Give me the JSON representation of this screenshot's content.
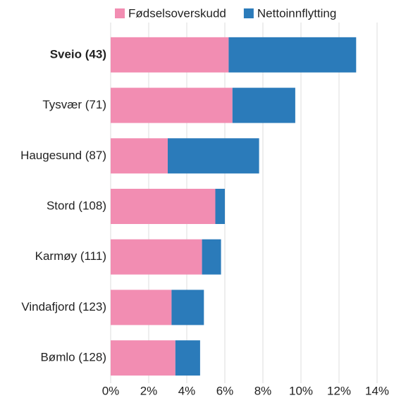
{
  "chart_data": {
    "type": "stacked_barh",
    "categories": [
      "Sveio (43)",
      "Tysvær (71)",
      "Haugesund (87)",
      "Stord (108)",
      "Karmøy (111)",
      "Vindafjord (123)",
      "Bømlo (128)"
    ],
    "highlight_index": 0,
    "series": [
      {
        "name": "Fødselsoverskudd",
        "color": "#f28db2",
        "values": [
          6.2,
          6.4,
          3.0,
          5.5,
          4.8,
          3.2,
          3.4
        ]
      },
      {
        "name": "Nettoinnflytting",
        "color": "#2b7bba",
        "values": [
          6.7,
          3.3,
          4.8,
          0.5,
          1.0,
          1.7,
          1.3
        ]
      }
    ],
    "xlim": [
      0,
      14
    ],
    "xticks": [
      {
        "value": 0,
        "label": "0%"
      },
      {
        "value": 2,
        "label": "2%"
      },
      {
        "value": 4,
        "label": "4%"
      },
      {
        "value": 6,
        "label": "6%"
      },
      {
        "value": 8,
        "label": "8%"
      },
      {
        "value": 10,
        "label": "10%"
      },
      {
        "value": 12,
        "label": "12%"
      },
      {
        "value": 14,
        "label": "14%"
      }
    ],
    "grid": true,
    "legend": "top"
  }
}
